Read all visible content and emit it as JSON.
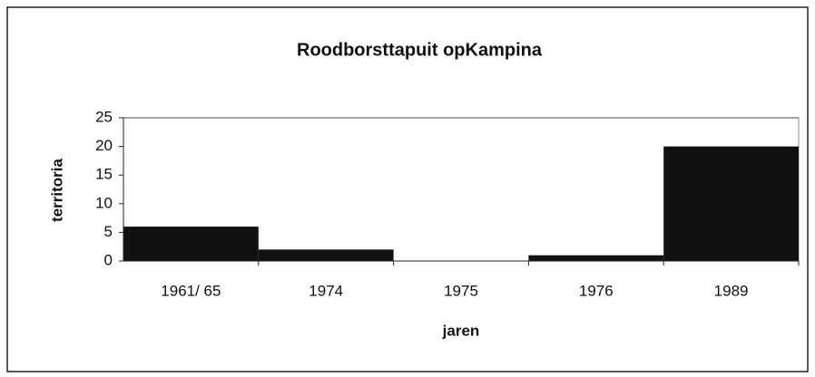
{
  "chart_data": {
    "type": "bar",
    "title": "Roodborsttapuit opKampina",
    "x_label": "jaren",
    "y_label": "territoria",
    "categories": [
      "1961/ 65",
      "1974",
      "1975",
      "1976",
      "1989"
    ],
    "values": [
      6,
      2,
      0,
      1,
      20
    ],
    "color": "#111111",
    "ylim": [
      0,
      25
    ],
    "yticks": [
      0,
      5,
      10,
      15,
      20,
      25
    ],
    "grid": false
  }
}
